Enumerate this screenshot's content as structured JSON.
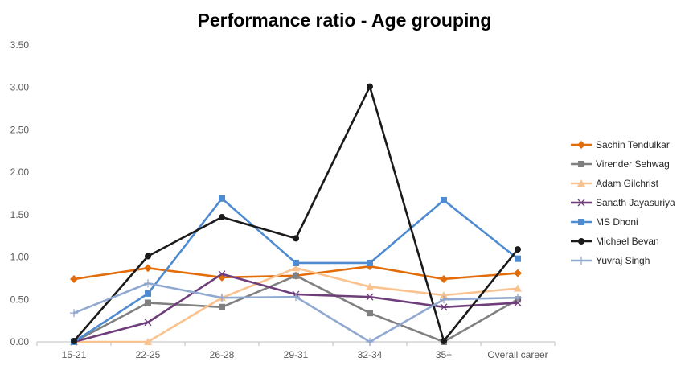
{
  "chart_data": {
    "type": "line",
    "title": "Performance ratio - Age grouping",
    "categories": [
      "15-21",
      "22-25",
      "26-28",
      "29-31",
      "32-34",
      "35+",
      "Overall career"
    ],
    "ylim": [
      0,
      3.5
    ],
    "yticks": [
      "0.00",
      "0.50",
      "1.00",
      "1.50",
      "2.00",
      "2.50",
      "3.00",
      "3.50"
    ],
    "grid": false,
    "legend_position": "right",
    "series": [
      {
        "name": "Sachin Tendulkar",
        "color": "#E36C0A",
        "marker": "diamond",
        "values": [
          0.74,
          0.87,
          0.76,
          0.78,
          0.89,
          0.74,
          0.81
        ]
      },
      {
        "name": "Virender Sehwag",
        "color": "#808080",
        "marker": "square",
        "values": [
          0.0,
          0.46,
          0.41,
          0.78,
          0.34,
          0.0,
          0.5
        ]
      },
      {
        "name": "Adam Gilchrist",
        "color": "#F9C28E",
        "marker": "triangle",
        "values": [
          0.0,
          0.0,
          0.52,
          0.87,
          0.65,
          0.55,
          0.63
        ]
      },
      {
        "name": "Sanath Jayasuriya",
        "color": "#6E3E7A",
        "marker": "x",
        "values": [
          0.0,
          0.23,
          0.8,
          0.56,
          0.53,
          0.41,
          0.46
        ]
      },
      {
        "name": "MS Dhoni",
        "color": "#4F8BD0",
        "marker": "square",
        "values": [
          0.0,
          0.57,
          1.69,
          0.93,
          0.93,
          1.67,
          0.98
        ]
      },
      {
        "name": "Michael Bevan",
        "color": "#1A1A1A",
        "marker": "circle",
        "values": [
          0.01,
          1.01,
          1.47,
          1.22,
          3.01,
          0.01,
          1.09
        ]
      },
      {
        "name": "Yuvraj Singh",
        "color": "#91A9D1",
        "marker": "plus",
        "values": [
          0.34,
          0.69,
          0.52,
          0.53,
          0.0,
          0.5,
          0.52
        ]
      }
    ]
  }
}
